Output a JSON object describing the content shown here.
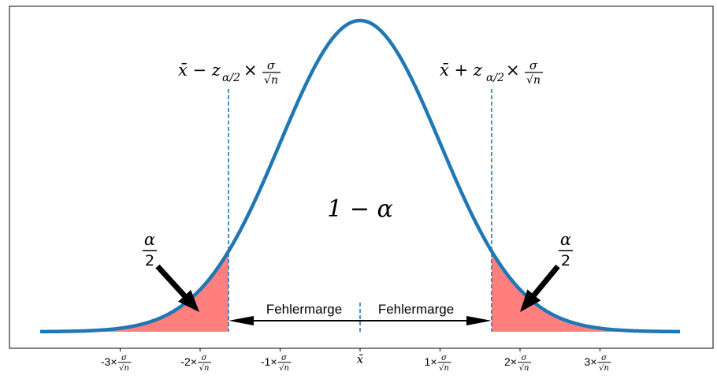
{
  "chart_data": {
    "type": "area",
    "distribution": "normal",
    "x_range": [
      -4,
      4
    ],
    "y_range_density": [
      0,
      0.42
    ],
    "critical_z": 1.645,
    "curve_color": "#1f77b4",
    "tail_fill_color": "#ff7f7f",
    "dash_color": "#1f77b4",
    "x_ticks": [
      {
        "value": -3,
        "prefix": "-3×",
        "num": "σ",
        "den": "√n"
      },
      {
        "value": -2,
        "prefix": "-2×",
        "num": "σ",
        "den": "√n"
      },
      {
        "value": -1,
        "prefix": "-1×",
        "num": "σ",
        "den": "√n"
      },
      {
        "value": 0,
        "prefix": "x̄",
        "num": "",
        "den": ""
      },
      {
        "value": 1,
        "prefix": "1×",
        "num": "σ",
        "den": "√n"
      },
      {
        "value": 2,
        "prefix": "2×",
        "num": "σ",
        "den": "√n"
      },
      {
        "value": 3,
        "prefix": "3×",
        "num": "σ",
        "den": "√n"
      }
    ],
    "annotations": {
      "left_bound": {
        "main": "x̄ − z",
        "sub": "α/2",
        "times": "×",
        "num": "σ",
        "den": "√n"
      },
      "right_bound": {
        "main": "x̄ + z",
        "sub": "α/2",
        "times": "×",
        "num": "σ",
        "den": "√n"
      },
      "center_label": "1 − α",
      "left_tail": {
        "num": "α",
        "den": "2"
      },
      "right_tail": {
        "num": "α",
        "den": "2"
      },
      "margin_left": "Fehlermarge",
      "margin_right": "Fehlermarge"
    }
  }
}
